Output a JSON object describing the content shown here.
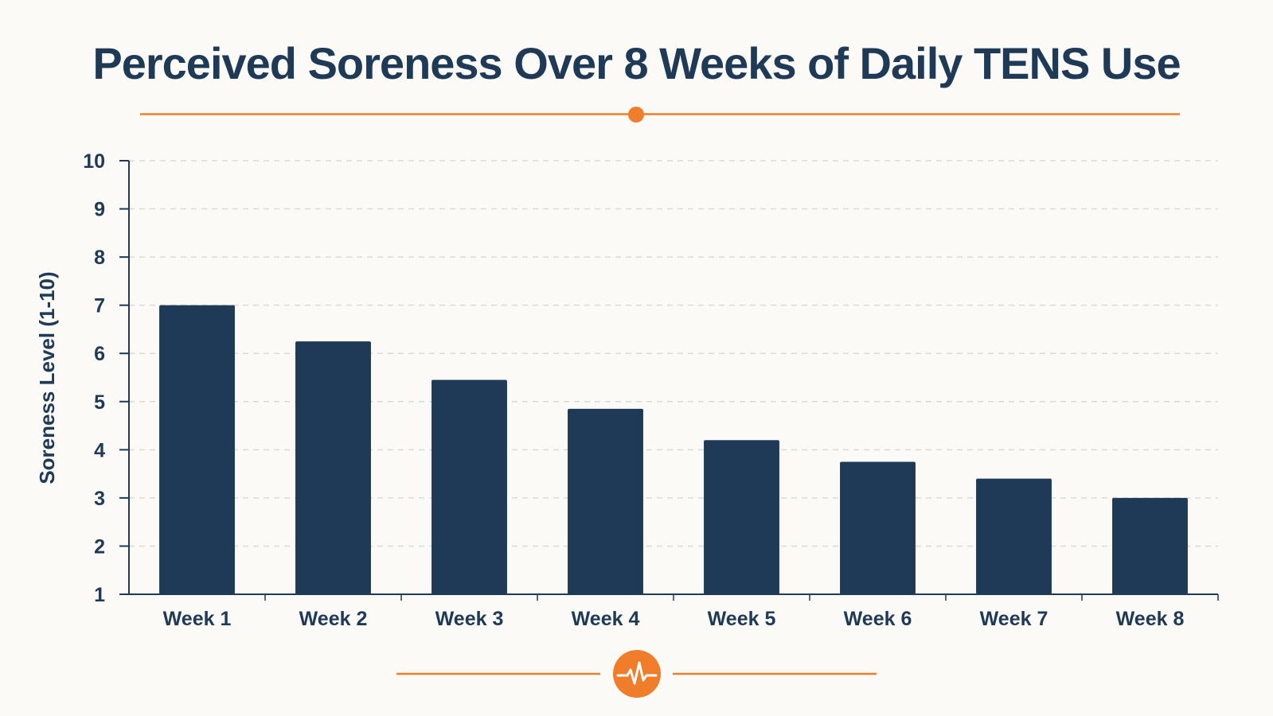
{
  "chart_data": {
    "type": "bar",
    "title": "Perceived Soreness Over 8 Weeks of Daily TENS Use",
    "xlabel": "",
    "ylabel": "Soreness Level (1-10)",
    "categories": [
      "Week 1",
      "Week 2",
      "Week 3",
      "Week 4",
      "Week 5",
      "Week 6",
      "Week 7",
      "Week 8"
    ],
    "values": [
      7.0,
      6.25,
      5.45,
      4.85,
      4.2,
      3.75,
      3.4,
      3.0
    ],
    "ylim": [
      1,
      10
    ],
    "yticks": [
      1,
      2,
      3,
      4,
      5,
      6,
      7,
      8,
      9,
      10
    ],
    "grid": true,
    "legend": "none"
  },
  "colors": {
    "bar": "#1f3a56",
    "accent": "#ef7d2a",
    "text": "#1f3a56",
    "grid": "#d9d9d9",
    "background": "#fbfaf6"
  },
  "decor": {
    "bottom_icon": "heartbeat-icon"
  }
}
